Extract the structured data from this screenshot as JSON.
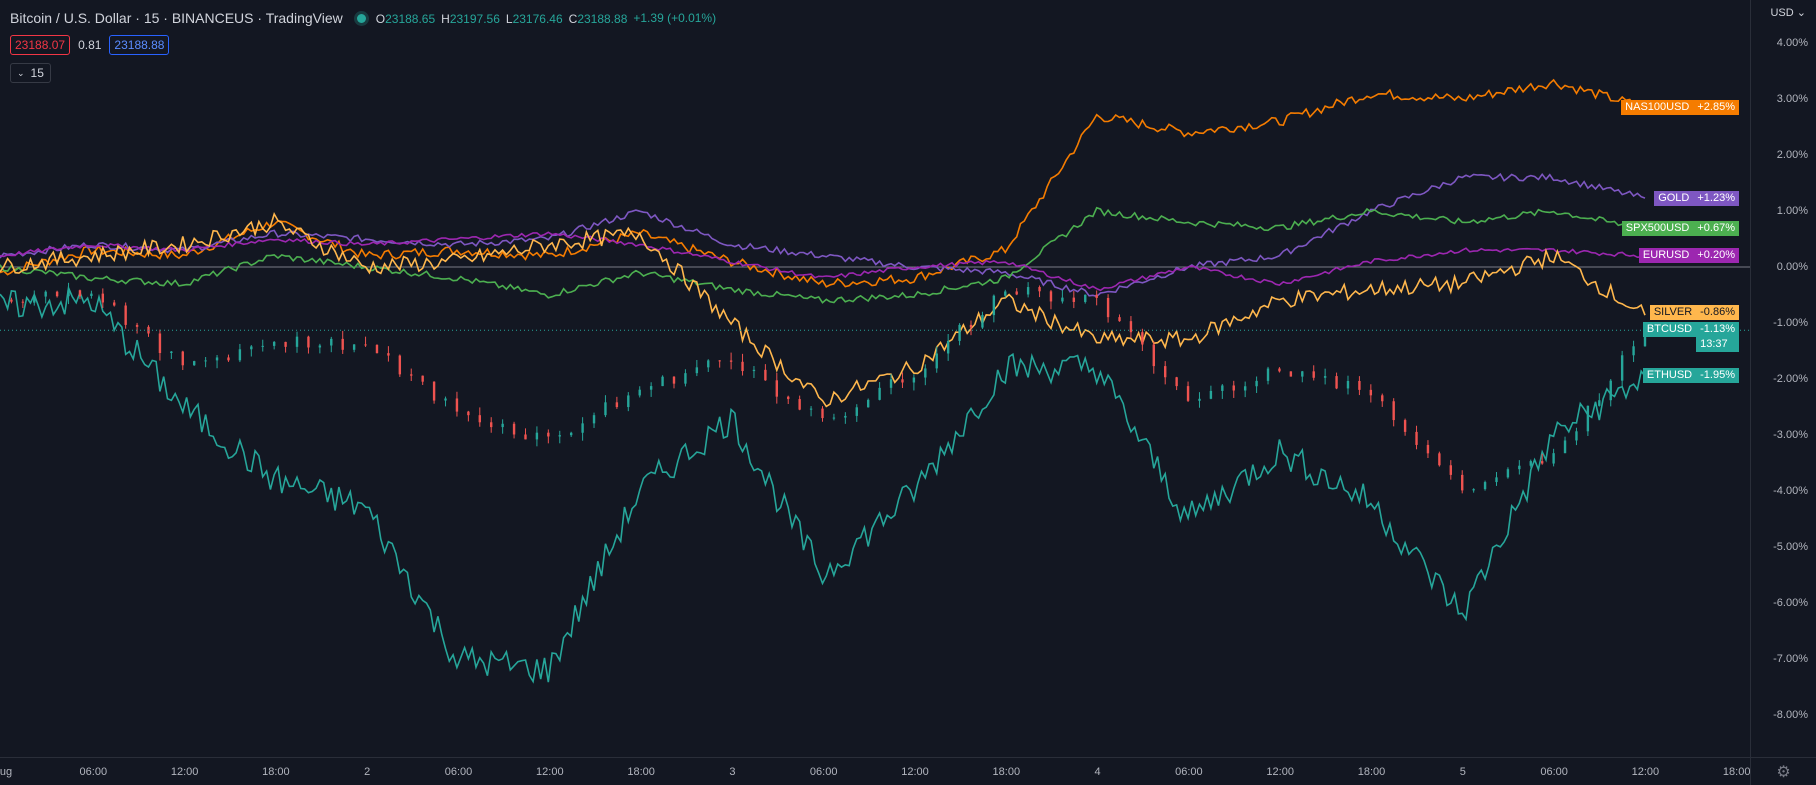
{
  "legend": {
    "title": "Bitcoin / U.S. Dollar · 15 · BINANCEUS · TradingView",
    "ohlc": [
      {
        "k": "O",
        "v": "23188.65"
      },
      {
        "k": "H",
        "v": "23197.56"
      },
      {
        "k": "L",
        "v": "23176.46"
      },
      {
        "k": "C",
        "v": "23188.88"
      }
    ],
    "change": "+1.39 (+0.01%)"
  },
  "trade": {
    "sell": "23188.07",
    "spread": "0.81",
    "buy": "23188.88"
  },
  "interval": "15",
  "currency": "USD",
  "price_scale": [
    "4.00%",
    "3.00%",
    "2.00%",
    "1.00%",
    "0.00%",
    "-1.00%",
    "-2.00%",
    "-3.00%",
    "-4.00%",
    "-5.00%",
    "-6.00%",
    "-7.00%",
    "-8.00%"
  ],
  "time_scale": [
    "ug",
    "06:00",
    "12:00",
    "18:00",
    "2",
    "06:00",
    "12:00",
    "18:00",
    "3",
    "06:00",
    "12:00",
    "18:00",
    "4",
    "06:00",
    "12:00",
    "18:00",
    "5",
    "06:00",
    "12:00",
    "18:00"
  ],
  "symbols": [
    {
      "name": "NAS100USD",
      "value": "+2.85%",
      "color": "#f57c00",
      "last": 2.85
    },
    {
      "name": "GOLD",
      "value": "+1.23%",
      "color": "#7e57c2",
      "last": 1.23
    },
    {
      "name": "SPX500USD",
      "value": "+0.67%",
      "color": "#4caf50",
      "last": 0.67
    },
    {
      "name": "EURUSD",
      "value": "+0.20%",
      "color": "#9c27b0",
      "last": 0.2
    },
    {
      "name": "SILVER",
      "value": "-0.86%",
      "color": "#ffb74d",
      "last": -0.86
    },
    {
      "name": "BTCUSD",
      "value": "-1.13%",
      "color": "#26a69a",
      "last": -1.13,
      "countdown": "13:37"
    },
    {
      "name": "ETHUSD",
      "value": "-1.95%",
      "color": "#26a69a",
      "last": -1.95
    }
  ],
  "chart_data": {
    "type": "line",
    "y_unit": "%",
    "ylim": [
      -8.3,
      4.3
    ],
    "x": [
      "Aug 1 00:00",
      "Aug 1 06:00",
      "Aug 1 12:00",
      "Aug 1 18:00",
      "Aug 2 00:00",
      "Aug 2 06:00",
      "Aug 2 12:00",
      "Aug 2 18:00",
      "Aug 3 00:00",
      "Aug 3 06:00",
      "Aug 3 12:00",
      "Aug 3 18:00",
      "Aug 4 00:00",
      "Aug 4 06:00",
      "Aug 4 12:00",
      "Aug 4 18:00",
      "Aug 5 00:00",
      "Aug 5 06:00",
      "Aug 5 12:00"
    ],
    "series": [
      {
        "name": "NAS100USD",
        "values": [
          -0.1,
          0.3,
          0.2,
          0.8,
          0.2,
          0.3,
          0.2,
          0.6,
          0.1,
          -0.3,
          -0.2,
          0.3,
          2.7,
          2.4,
          2.6,
          3.1,
          3.0,
          3.3,
          2.85
        ]
      },
      {
        "name": "GOLD",
        "values": [
          0.2,
          0.4,
          0.3,
          0.6,
          0.5,
          0.4,
          0.5,
          1.0,
          0.4,
          0.2,
          0.0,
          -0.1,
          -0.5,
          0.0,
          0.2,
          1.0,
          1.6,
          1.6,
          1.23
        ]
      },
      {
        "name": "SPX500USD",
        "values": [
          0.0,
          -0.2,
          -0.3,
          0.2,
          0.0,
          -0.2,
          -0.5,
          -0.1,
          -0.4,
          -0.6,
          -0.5,
          -0.2,
          1.0,
          0.8,
          0.7,
          1.0,
          0.8,
          1.0,
          0.67
        ]
      },
      {
        "name": "EURUSD",
        "values": [
          0.2,
          0.4,
          0.3,
          0.5,
          0.4,
          0.5,
          0.6,
          0.4,
          0.1,
          -0.2,
          0.0,
          0.1,
          -0.4,
          0.0,
          -0.3,
          0.1,
          0.3,
          0.3,
          0.2
        ]
      },
      {
        "name": "SILVER",
        "values": [
          0.0,
          0.2,
          0.4,
          0.8,
          0.0,
          0.1,
          0.4,
          0.6,
          -1.0,
          -2.4,
          -1.8,
          -0.6,
          -1.3,
          -1.3,
          -0.6,
          -0.4,
          -0.3,
          0.2,
          -0.86
        ]
      },
      {
        "name": "BTCUSD",
        "values": [
          -0.6,
          -0.4,
          -1.8,
          -1.3,
          -1.4,
          -2.6,
          -3.1,
          -2.2,
          -1.6,
          -2.8,
          -1.9,
          -0.4,
          -0.6,
          -2.4,
          -1.8,
          -2.2,
          -4.0,
          -3.4,
          -1.13
        ]
      },
      {
        "name": "ETHUSD",
        "values": [
          -0.7,
          -0.6,
          -2.5,
          -3.8,
          -4.3,
          -7.0,
          -7.2,
          -4.0,
          -2.7,
          -5.5,
          -4.0,
          -1.8,
          -1.8,
          -4.5,
          -3.3,
          -4.2,
          -6.2,
          -3.0,
          -1.95
        ]
      }
    ]
  }
}
